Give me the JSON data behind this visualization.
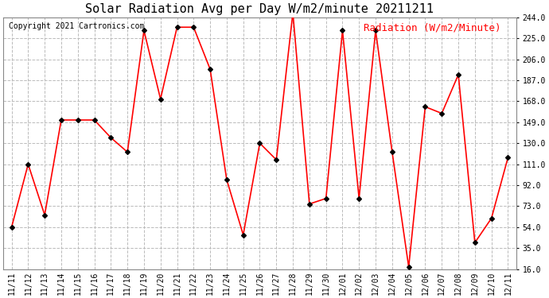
{
  "title": "Solar Radiation Avg per Day W/m2/minute 20211211",
  "copyright": "Copyright 2021 Cartronics.com",
  "legend_label": "Radiation (W/m2/Minute)",
  "legend_color": "red",
  "dates": [
    "11/11",
    "11/12",
    "11/13",
    "11/14",
    "11/15",
    "11/16",
    "11/17",
    "11/18",
    "11/19",
    "11/20",
    "11/21",
    "11/22",
    "11/23",
    "11/24",
    "11/25",
    "11/26",
    "11/27",
    "11/28",
    "11/29",
    "11/30",
    "12/01",
    "12/02",
    "12/03",
    "12/04",
    "12/05",
    "12/06",
    "12/07",
    "12/08",
    "12/09",
    "12/10",
    "12/11"
  ],
  "values": [
    54,
    111,
    65,
    151,
    151,
    151,
    135,
    122,
    232,
    170,
    235,
    235,
    197,
    97,
    47,
    130,
    115,
    248,
    75,
    80,
    232,
    80,
    232,
    122,
    18,
    163,
    157,
    192,
    40,
    62,
    117
  ],
  "line_color": "red",
  "marker": "D",
  "marker_color": "black",
  "marker_size": 3,
  "ylim": [
    16.0,
    244.0
  ],
  "yticks": [
    16.0,
    35.0,
    54.0,
    73.0,
    92.0,
    111.0,
    130.0,
    149.0,
    168.0,
    187.0,
    206.0,
    225.0,
    244.0
  ],
  "grid_color": "#bbbbbb",
  "grid_style": "--",
  "bg_color": "#ffffff",
  "title_fontsize": 11,
  "copyright_fontsize": 7,
  "legend_fontsize": 9,
  "tick_fontsize": 7,
  "linewidth": 1.2
}
